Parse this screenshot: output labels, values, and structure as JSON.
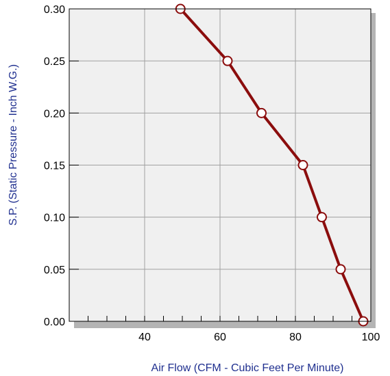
{
  "chart_data": {
    "type": "line",
    "title": "",
    "xlabel": "Air Flow (CFM - Cubic Feet Per Minute)",
    "ylabel": "S.P. (Static Pressure - Inch W.G.)",
    "xlim": [
      20,
      100
    ],
    "ylim": [
      0.0,
      0.3
    ],
    "x_ticks": [
      40,
      60,
      80,
      100
    ],
    "x_tick_labels": [
      "40",
      "60",
      "80",
      "100"
    ],
    "y_ticks": [
      0.0,
      0.05,
      0.1,
      0.15,
      0.2,
      0.25,
      0.3
    ],
    "y_tick_labels": [
      "0.00",
      "0.05",
      "0.10",
      "0.15",
      "0.20",
      "0.25",
      "0.30"
    ],
    "grid": true,
    "legend": "none",
    "series": [
      {
        "x": [
          49.5,
          62,
          71,
          82,
          87,
          92,
          98
        ],
        "y": [
          0.3,
          0.25,
          0.2,
          0.15,
          0.1,
          0.05,
          0.0
        ]
      }
    ],
    "colors": {
      "line": "#8b0d0d",
      "marker_fill": "#ffffff",
      "plot_background": "#f0f0f0",
      "grid": "#a0a0a0",
      "axis_title": "#1f2f8f",
      "shadow": "#b4b4b4"
    }
  }
}
